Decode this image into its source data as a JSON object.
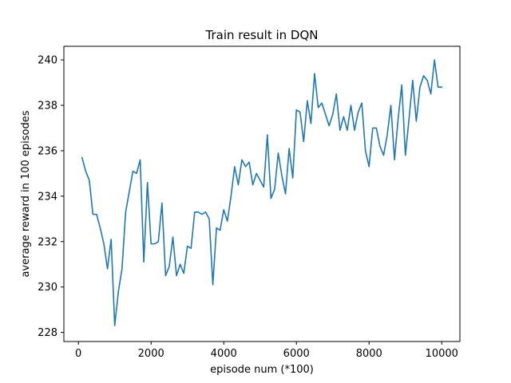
{
  "chart_data": {
    "type": "line",
    "title": "Train result in DQN",
    "xlabel": "episode num (*100)",
    "ylabel": "average reward in 100 episodes",
    "xlim": [
      -400,
      10500
    ],
    "ylim": [
      227.6,
      240.6
    ],
    "grid": false,
    "x_ticks": [
      0,
      2000,
      4000,
      6000,
      8000,
      10000
    ],
    "y_ticks": [
      228,
      230,
      232,
      234,
      236,
      238,
      240
    ],
    "series": [
      {
        "color": "#1f77b4",
        "x": [
          100,
          200,
          300,
          400,
          500,
          600,
          700,
          800,
          900,
          1000,
          1100,
          1200,
          1300,
          1400,
          1500,
          1600,
          1700,
          1800,
          1900,
          2000,
          2100,
          2200,
          2300,
          2400,
          2500,
          2600,
          2700,
          2800,
          2900,
          3000,
          3100,
          3200,
          3300,
          3400,
          3500,
          3600,
          3700,
          3800,
          3900,
          4000,
          4100,
          4200,
          4300,
          4400,
          4500,
          4600,
          4700,
          4800,
          4900,
          5000,
          5100,
          5200,
          5300,
          5400,
          5500,
          5600,
          5700,
          5800,
          5900,
          6000,
          6100,
          6200,
          6300,
          6400,
          6500,
          6600,
          6700,
          6800,
          6900,
          7000,
          7100,
          7200,
          7300,
          7400,
          7500,
          7600,
          7700,
          7800,
          7900,
          8000,
          8100,
          8200,
          8300,
          8400,
          8500,
          8600,
          8700,
          8800,
          8900,
          9000,
          9100,
          9200,
          9300,
          9400,
          9500,
          9600,
          9700,
          9800,
          9900,
          10000
        ],
        "y": [
          235.7,
          235.1,
          234.7,
          233.2,
          233.2,
          232.6,
          231.9,
          230.8,
          232.1,
          228.3,
          229.8,
          230.8,
          233.3,
          234.2,
          235.1,
          235.0,
          235.6,
          231.1,
          234.6,
          231.9,
          231.9,
          232.0,
          233.7,
          230.5,
          230.9,
          232.2,
          230.5,
          231.0,
          230.6,
          231.8,
          231.7,
          233.3,
          233.3,
          233.2,
          233.3,
          233.0,
          230.1,
          232.6,
          232.5,
          233.4,
          232.9,
          234.0,
          235.3,
          234.5,
          235.6,
          235.3,
          235.5,
          234.5,
          235.0,
          234.7,
          234.4,
          236.7,
          233.9,
          234.3,
          235.9,
          234.9,
          234.1,
          236.1,
          234.8,
          237.8,
          237.7,
          236.4,
          238.2,
          237.2,
          239.4,
          237.9,
          238.1,
          237.6,
          237.1,
          237.6,
          238.5,
          236.9,
          237.5,
          236.9,
          238.0,
          236.9,
          237.7,
          238.1,
          236.0,
          235.3,
          237.0,
          237.0,
          236.2,
          235.8,
          236.7,
          238.0,
          235.6,
          237.4,
          238.9,
          235.8,
          237.4,
          239.1,
          237.3,
          238.8,
          239.3,
          239.1,
          238.5,
          240.0,
          238.8,
          238.8
        ]
      }
    ]
  }
}
